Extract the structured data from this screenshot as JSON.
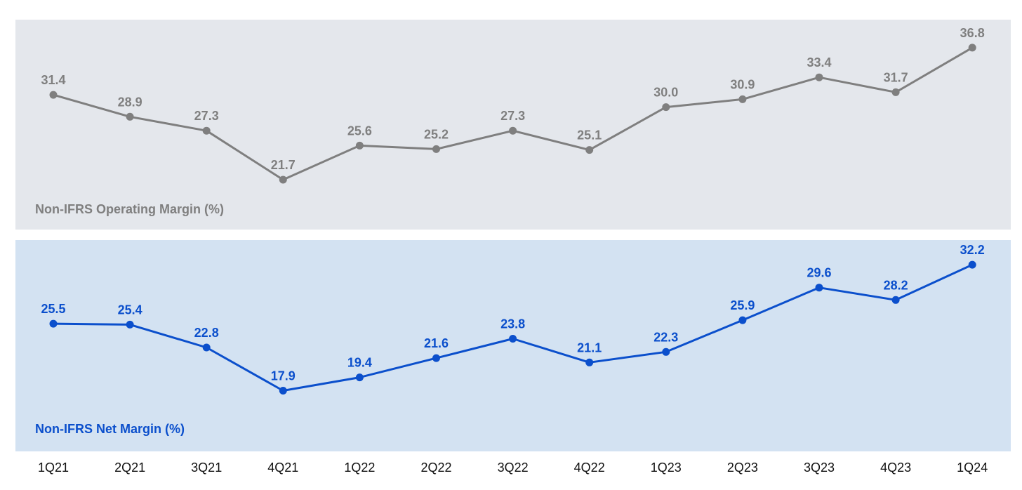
{
  "chart_data": [
    {
      "type": "line",
      "categories": [
        "1Q21",
        "2Q21",
        "3Q21",
        "4Q21",
        "1Q22",
        "2Q22",
        "3Q22",
        "4Q22",
        "1Q23",
        "2Q23",
        "3Q23",
        "4Q23",
        "1Q24"
      ],
      "series": [
        {
          "name": "Non-IFRS Operating Margin (%)",
          "values": [
            31.4,
            28.9,
            27.3,
            21.7,
            25.6,
            25.2,
            27.3,
            25.1,
            30.0,
            30.9,
            33.4,
            31.7,
            36.8
          ]
        }
      ],
      "title": "Non-IFRS Operating Margin (%)",
      "ylim": [
        16,
        40
      ],
      "grid": false,
      "colors": {
        "line": "#7f7f7f",
        "label": "#7f7f7f",
        "panel_bg": "#e4e7ec"
      }
    },
    {
      "type": "line",
      "categories": [
        "1Q21",
        "2Q21",
        "3Q21",
        "4Q21",
        "1Q22",
        "2Q22",
        "3Q22",
        "4Q22",
        "1Q23",
        "2Q23",
        "3Q23",
        "4Q23",
        "1Q24"
      ],
      "series": [
        {
          "name": "Non-IFRS Net Margin (%)",
          "values": [
            25.5,
            25.4,
            22.8,
            17.9,
            19.4,
            21.6,
            23.8,
            21.1,
            22.3,
            25.9,
            29.6,
            28.2,
            32.2
          ]
        }
      ],
      "title": "Non-IFRS Net Margin (%)",
      "ylim": [
        11,
        35
      ],
      "grid": false,
      "colors": {
        "line": "#0b4fcc",
        "label": "#0b4fcc",
        "panel_bg": "#d3e2f2"
      }
    }
  ],
  "x_axis": {
    "tick_labels": [
      "1Q21",
      "2Q21",
      "3Q21",
      "4Q21",
      "1Q22",
      "2Q22",
      "3Q22",
      "4Q22",
      "1Q23",
      "2Q23",
      "3Q23",
      "4Q23",
      "1Q24"
    ]
  }
}
